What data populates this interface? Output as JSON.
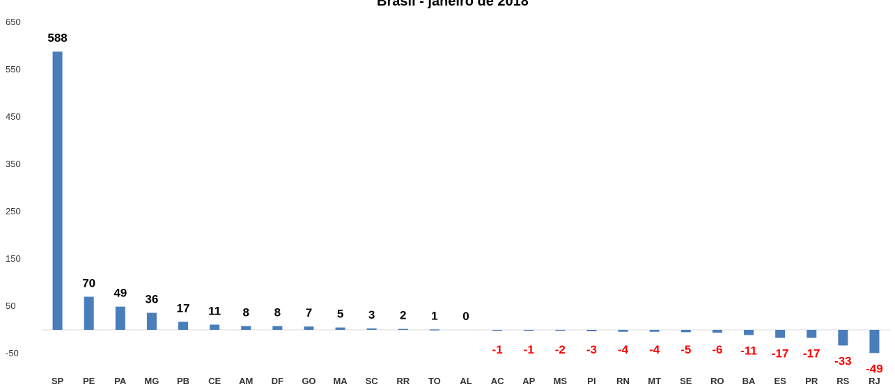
{
  "chart_data": {
    "type": "bar",
    "title": "Brasil - janeiro de 2018",
    "categories": [
      "SP",
      "PE",
      "PA",
      "MG",
      "PB",
      "CE",
      "AM",
      "DF",
      "GO",
      "MA",
      "SC",
      "RR",
      "TO",
      "AL",
      "AC",
      "AP",
      "MS",
      "PI",
      "RN",
      "MT",
      "SE",
      "RO",
      "BA",
      "ES",
      "PR",
      "RS",
      "RJ"
    ],
    "values": [
      588,
      70,
      49,
      36,
      17,
      11,
      8,
      8,
      7,
      5,
      3,
      2,
      1,
      0,
      -1,
      -1,
      -2,
      -3,
      -4,
      -4,
      -5,
      -6,
      -11,
      -17,
      -17,
      -33,
      -49
    ],
    "ylim": [
      -50,
      650
    ],
    "yticks": [
      "650",
      "550",
      "450",
      "350",
      "250",
      "150",
      "50",
      "-50"
    ],
    "xlabel": "",
    "ylabel": "",
    "grid": false,
    "colors": {
      "bar": "#4a7ebb",
      "positive_label": "#000000",
      "negative_label": "#ff0000",
      "axis": "#d9d9d9"
    }
  }
}
